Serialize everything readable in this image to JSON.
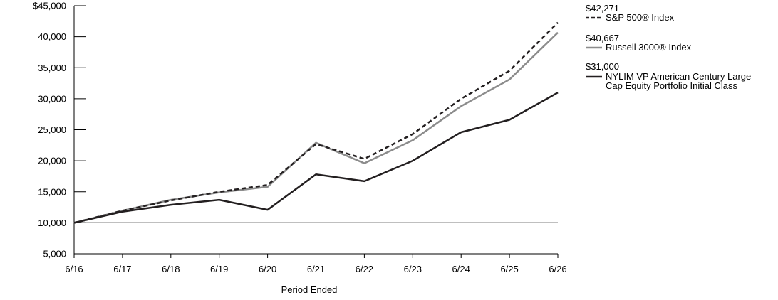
{
  "chart_data": {
    "type": "line",
    "categories": [
      "6/16",
      "6/17",
      "6/18",
      "6/19",
      "6/20",
      "6/21",
      "6/22",
      "6/23",
      "6/24",
      "6/25",
      "6/26"
    ],
    "xlabel": "Period Ended",
    "ylabel": "",
    "ylim": [
      5000,
      45000
    ],
    "yticks": [
      5000,
      10000,
      15000,
      20000,
      25000,
      30000,
      35000,
      40000,
      45000
    ],
    "ytick_labels": [
      "5,000",
      "10,000",
      "15,000",
      "20,000",
      "25,000",
      "30,000",
      "35,000",
      "40,000",
      "$45,000"
    ],
    "grid": false,
    "reference_line": 10000,
    "legend_position": "right",
    "series": [
      {
        "name": "S&P 500® Index",
        "end_value_label": "$42,271",
        "style": "dashed",
        "color": "#231f20",
        "values": [
          10000,
          11960,
          13600,
          15000,
          16100,
          22700,
          20300,
          24300,
          30000,
          34500,
          42271
        ]
      },
      {
        "name": "Russell 3000® Index",
        "end_value_label": "$40,667",
        "style": "solid",
        "color": "#8c8c8c",
        "values": [
          10000,
          11950,
          13700,
          14900,
          15800,
          22900,
          19600,
          23300,
          28800,
          33100,
          40667
        ]
      },
      {
        "name": "NYLIM VP American Century Large Cap Equity Portfolio Initial Class",
        "name_lines": [
          "NYLIM VP American Century Large",
          "Cap Equity Portfolio Initial Class"
        ],
        "end_value_label": "$31,000",
        "style": "solid",
        "color": "#231f20",
        "values": [
          10000,
          11800,
          12900,
          13700,
          12100,
          17800,
          16700,
          20000,
          24600,
          26600,
          31000
        ]
      }
    ]
  }
}
